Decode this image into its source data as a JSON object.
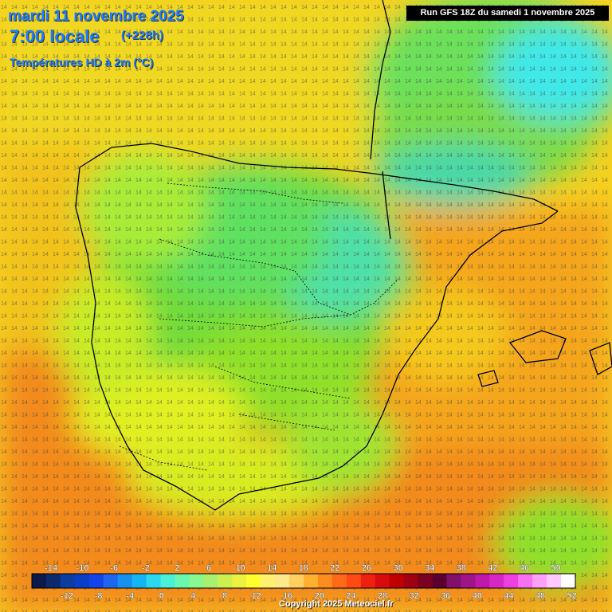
{
  "header": {
    "date_line": "mardi 11 novembre 2025",
    "time_line": "7:00 locale",
    "lead_time": "(+228h)",
    "parameter": "Températures HD à 2m (°C)"
  },
  "run_info": "Run GFS 18Z du samedi 1 novembre 2025",
  "copyright": "Copyright 2025 Meteociel.fr",
  "colors": {
    "sea_warm": "#f28a1e",
    "sea_mid": "#f4d21a",
    "land_mild": "#d8f21a",
    "land_cool": "#8ee02a",
    "land_cold": "#4ad84a",
    "coast_line": "#000000"
  },
  "color_scale": {
    "upper_labels": [
      "-14",
      "-10",
      "-6",
      "-2",
      "2",
      "6",
      "10",
      "14",
      "18",
      "22",
      "26",
      "30",
      "34",
      "38",
      "42",
      "46",
      "50"
    ],
    "lower_labels": [
      "-12",
      "-8",
      "-4",
      "0",
      "4",
      "8",
      "12",
      "16",
      "20",
      "24",
      "28",
      "32",
      "36",
      "40",
      "44",
      "48",
      "52"
    ],
    "swatches": [
      "#0a1a4a",
      "#0b2a6e",
      "#0c3ca0",
      "#0a3ec8",
      "#1244e8",
      "#1e66f0",
      "#1890f0",
      "#16b4f0",
      "#2ad8f0",
      "#4af0d8",
      "#6af8b0",
      "#8af890",
      "#aaf070",
      "#ccf050",
      "#ecf040",
      "#ffff30",
      "#fff070",
      "#ffe88c",
      "#ffd060",
      "#ffb030",
      "#ff8c1e",
      "#ff6a18",
      "#ff4a14",
      "#f02010",
      "#d80c0c",
      "#c00000",
      "#a00010",
      "#7c0020",
      "#5a0030",
      "#80106a",
      "#a0148a",
      "#c018a8",
      "#d828c4",
      "#ee40e0",
      "#f870f0",
      "#ffa0f8",
      "#ffc8ff",
      "#ffffff"
    ]
  }
}
